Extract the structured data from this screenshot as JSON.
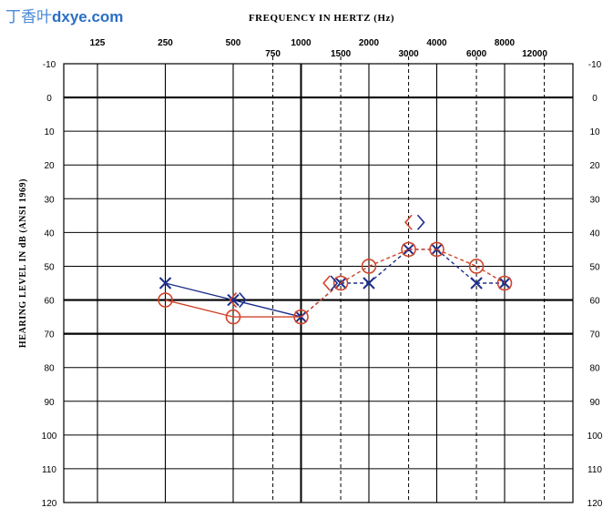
{
  "watermark": {
    "chinese": "丁香叶",
    "site": "dxye.com"
  },
  "chart_data": {
    "type": "scatter",
    "title": "FREQUENCY IN HERTZ (Hz)",
    "xlabel": "FREQUENCY IN HERTZ (Hz)",
    "ylabel": "HEARING LEVEL IN dB (ANSI 1969)",
    "x_ticks_major": [
      "125",
      "250",
      "500",
      "1000",
      "2000",
      "4000",
      "8000"
    ],
    "x_ticks_minor": [
      "750",
      "1500",
      "3000",
      "6000",
      "12000"
    ],
    "y_ticks": [
      "-10",
      "0",
      "10",
      "20",
      "30",
      "40",
      "50",
      "60",
      "70",
      "80",
      "90",
      "100",
      "110",
      "120"
    ],
    "ylim": [
      -10,
      120
    ],
    "y_axis_inverted": true,
    "x_scale": "log",
    "grid": true,
    "series": [
      {
        "marker": "X",
        "color": "#1d2e8a",
        "x": [
          250,
          500,
          1000,
          1500,
          2000,
          3000,
          4000,
          6000,
          8000
        ],
        "y": [
          55,
          60,
          65,
          55,
          55,
          45,
          45,
          55,
          55
        ]
      },
      {
        "marker": "O",
        "color": "#d0442a",
        "x": [
          250,
          500,
          1000,
          1500,
          2000,
          3000,
          4000,
          6000,
          8000
        ],
        "y": [
          60,
          65,
          65,
          55,
          50,
          45,
          45,
          50,
          55
        ]
      }
    ],
    "bone_conduction_markers": [
      {
        "symbol": "<",
        "color": "#d0442a",
        "x": 500,
        "y": 60
      },
      {
        "symbol": ">",
        "color": "#1d2e8a",
        "x": 550,
        "y": 60
      },
      {
        "symbol": "<",
        "color": "#d0442a",
        "x": 1300,
        "y": 55
      },
      {
        "symbol": ">",
        "color": "#1d2e8a",
        "x": 1400,
        "y": 55
      },
      {
        "symbol": "<",
        "color": "#d0442a",
        "x": 3000,
        "y": 37
      },
      {
        "symbol": ">",
        "color": "#1d2e8a",
        "x": 3400,
        "y": 37
      }
    ]
  }
}
